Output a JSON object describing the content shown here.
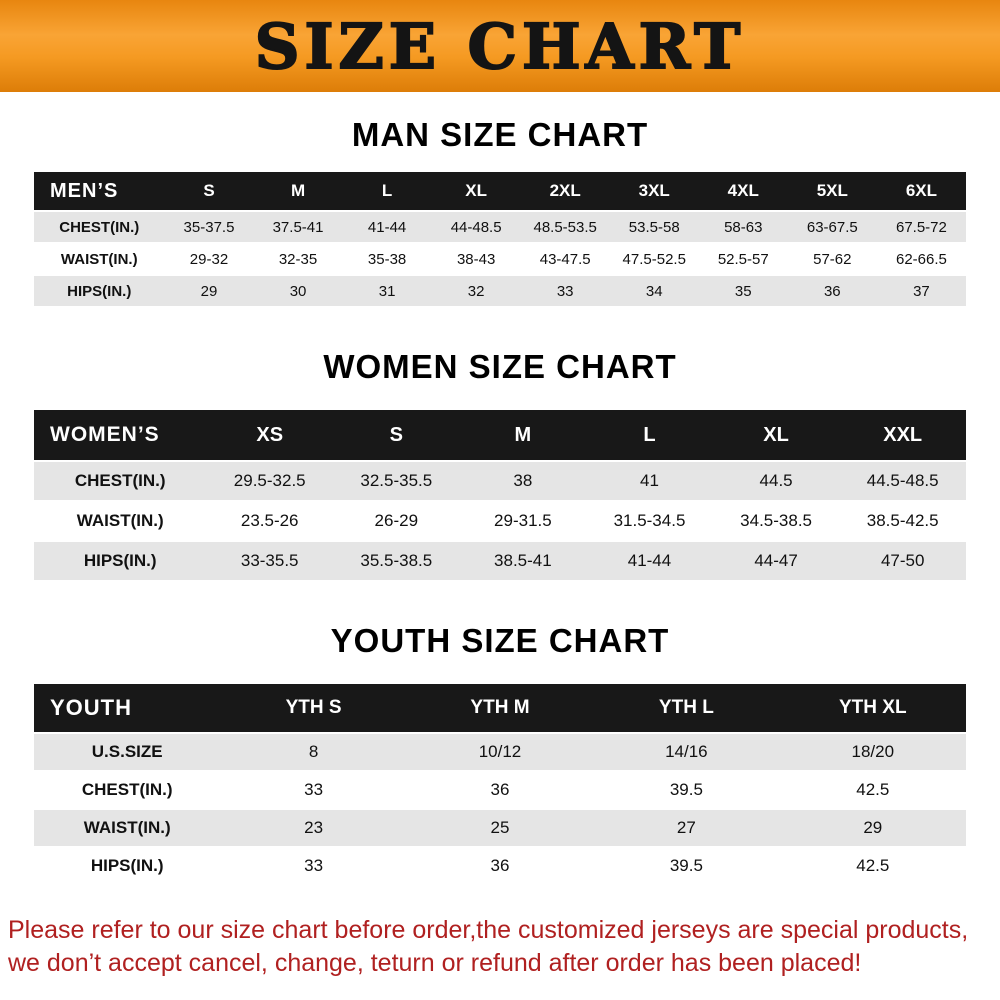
{
  "banner": {
    "title": "SIZE CHART"
  },
  "colors": {
    "banner_orange": "#f59a22",
    "table_header_black": "#181818",
    "row_stripe_gray": "#e5e5e5",
    "disclaimer_red": "#b02020"
  },
  "sections": [
    {
      "heading": "MAN SIZE CHART",
      "table": {
        "header": [
          "MEN’S",
          "S",
          "M",
          "L",
          "XL",
          "2XL",
          "3XL",
          "4XL",
          "5XL",
          "6XL"
        ],
        "rows": [
          [
            "CHEST(IN.)",
            "35-37.5",
            "37.5-41",
            "41-44",
            "44-48.5",
            "48.5-53.5",
            "53.5-58",
            "58-63",
            "63-67.5",
            "67.5-72"
          ],
          [
            "WAIST(IN.)",
            "29-32",
            "32-35",
            "35-38",
            "38-43",
            "43-47.5",
            "47.5-52.5",
            "52.5-57",
            "57-62",
            "62-66.5"
          ],
          [
            "HIPS(IN.)",
            "29",
            "30",
            "31",
            "32",
            "33",
            "34",
            "35",
            "36",
            "37"
          ]
        ]
      }
    },
    {
      "heading": "WOMEN SIZE CHART",
      "table": {
        "header": [
          "WOMEN’S",
          "XS",
          "S",
          "M",
          "L",
          "XL",
          "XXL"
        ],
        "rows": [
          [
            "CHEST(IN.)",
            "29.5-32.5",
            "32.5-35.5",
            "38",
            "41",
            "44.5",
            "44.5-48.5"
          ],
          [
            "WAIST(IN.)",
            "23.5-26",
            "26-29",
            "29-31.5",
            "31.5-34.5",
            "34.5-38.5",
            "38.5-42.5"
          ],
          [
            "HIPS(IN.)",
            "33-35.5",
            "35.5-38.5",
            "38.5-41",
            "41-44",
            "44-47",
            "47-50"
          ]
        ]
      }
    },
    {
      "heading": "YOUTH SIZE CHART",
      "table": {
        "header": [
          "YOUTH",
          "YTH S",
          "YTH M",
          "YTH L",
          "YTH XL"
        ],
        "rows": [
          [
            "U.S.SIZE",
            "8",
            "10/12",
            "14/16",
            "18/20"
          ],
          [
            "CHEST(IN.)",
            "33",
            "36",
            "39.5",
            "42.5"
          ],
          [
            "WAIST(IN.)",
            "23",
            "25",
            "27",
            "29"
          ],
          [
            "HIPS(IN.)",
            "33",
            "36",
            "39.5",
            "42.5"
          ]
        ]
      }
    }
  ],
  "footer": {
    "line1": "Please refer to our size chart before order,the customized jerseys are special products,",
    "line2": "we don’t accept cancel, change, teturn or refund after order has been placed!"
  }
}
